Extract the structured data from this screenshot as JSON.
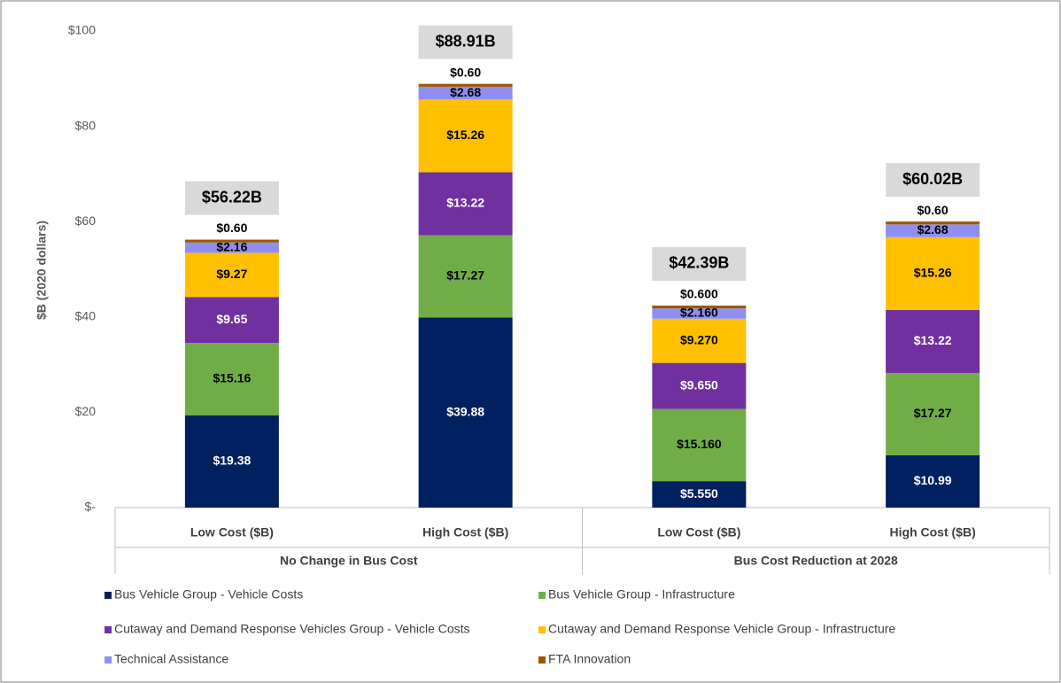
{
  "chart_data": {
    "type": "stacked_bar",
    "y_label": "$B (2020 dollars)",
    "categories": [
      "Low Cost ($B)",
      "High Cost ($B)",
      "Low Cost ($B)",
      "High Cost ($B)"
    ],
    "groups": [
      {
        "name": "No Change in Bus Cost",
        "span": [
          0,
          1
        ]
      },
      {
        "name": "Bus Cost Reduction at 2028",
        "span": [
          2,
          3
        ]
      }
    ],
    "ylim": [
      0,
      100
    ],
    "yticks": [
      {
        "value": 0,
        "label": "$-"
      },
      {
        "value": 20,
        "label": "$20"
      },
      {
        "value": 40,
        "label": "$40"
      },
      {
        "value": 60,
        "label": "$60"
      },
      {
        "value": 80,
        "label": "$80"
      },
      {
        "value": 100,
        "label": "$100"
      }
    ],
    "grid": false,
    "series": [
      {
        "name": "Bus Vehicle Group - Vehicle Costs",
        "color": "#002060",
        "values": [
          19.38,
          39.88,
          5.55,
          10.99
        ],
        "value_labels": [
          "$19.38",
          "$39.88",
          "$5.550",
          "$10.99"
        ]
      },
      {
        "name": "Bus Vehicle Group - Infrastructure",
        "color": "#70ad47",
        "values": [
          15.16,
          17.27,
          15.16,
          17.27
        ],
        "value_labels": [
          "$15.16",
          "$17.27",
          "$15.160",
          "$17.27"
        ]
      },
      {
        "name": "Cutaway and Demand Response Vehicles Group - Vehicle Costs",
        "color": "#7030a0",
        "values": [
          9.65,
          13.22,
          9.65,
          13.22
        ],
        "value_labels": [
          "$9.65",
          "$13.22",
          "$9.650",
          "$13.22"
        ]
      },
      {
        "name": "Cutaway and Demand Response Vehicle Group - Infrastructure",
        "color": "#ffc000",
        "values": [
          9.27,
          15.26,
          9.27,
          15.26
        ],
        "value_labels": [
          "$9.27",
          "$15.26",
          "$9.270",
          "$15.26"
        ]
      },
      {
        "name": "Technical Assistance",
        "color": "#8f8ff2",
        "values": [
          2.16,
          2.68,
          2.16,
          2.68
        ],
        "value_labels": [
          "$2.16",
          "$2.68",
          "$2.160",
          "$2.68"
        ]
      },
      {
        "name": "FTA Innovation",
        "color": "#9c5700",
        "values": [
          0.6,
          0.6,
          0.6,
          0.6
        ],
        "value_labels": [
          "$0.60",
          "$0.60",
          "$0.600",
          "$0.60"
        ]
      }
    ],
    "totals": {
      "values": [
        56.22,
        88.91,
        42.39,
        60.02
      ],
      "value_labels": [
        "$56.22B",
        "$88.91B",
        "$42.39B",
        "$60.02B"
      ]
    }
  }
}
